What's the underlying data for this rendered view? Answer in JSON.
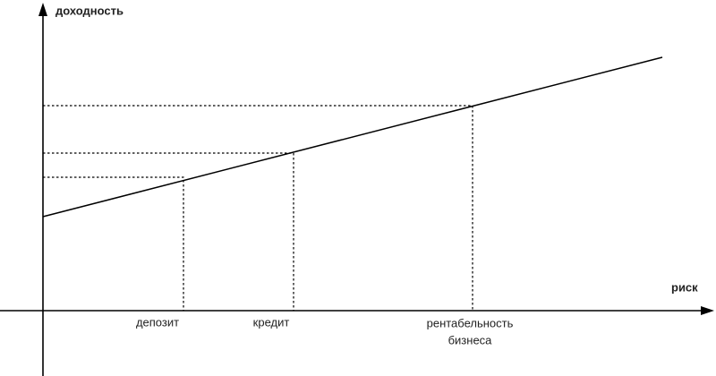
{
  "axes": {
    "y_label": "доходность",
    "x_label": "риск"
  },
  "points": [
    {
      "label": [
        "депозит"
      ]
    },
    {
      "label": [
        "кредит"
      ]
    },
    {
      "label": [
        "рентабельность",
        "бизнеса"
      ]
    }
  ]
}
